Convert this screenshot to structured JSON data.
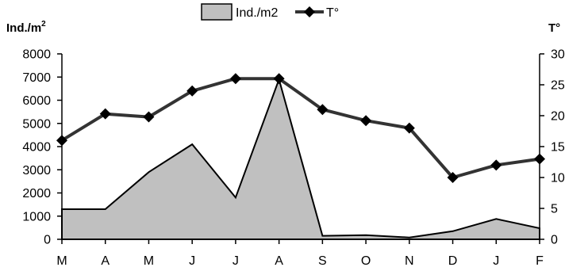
{
  "chart_data": {
    "type": "area+line",
    "categories": [
      "M",
      "A",
      "M",
      "J",
      "J",
      "A",
      "S",
      "O",
      "N",
      "D",
      "J",
      "F"
    ],
    "series": [
      {
        "name": "Ind./m2",
        "kind": "area",
        "axis": "left",
        "values": [
          1300,
          1300,
          2900,
          4100,
          1800,
          6900,
          150,
          180,
          80,
          350,
          880,
          480
        ],
        "color": "#c0c0c0"
      },
      {
        "name": "T°",
        "kind": "line",
        "axis": "right",
        "values": [
          16,
          20.3,
          19.8,
          24,
          26,
          26,
          21,
          19.2,
          18,
          10,
          12,
          13
        ],
        "color": "#333333"
      }
    ],
    "y_left": {
      "label": "Ind./m",
      "label_sup": "2",
      "ylim": [
        0,
        8000
      ],
      "ticks": [
        "0",
        "1000",
        "2000",
        "3000",
        "4000",
        "5000",
        "6000",
        "7000",
        "8000"
      ]
    },
    "y_right": {
      "label": "T°",
      "ylim": [
        0,
        30
      ],
      "ticks": [
        "0",
        "5",
        "10",
        "15",
        "20",
        "25",
        "30"
      ]
    },
    "legend": {
      "position": "top-center",
      "items": [
        "Ind./m2",
        "T°"
      ]
    },
    "grid": false
  }
}
